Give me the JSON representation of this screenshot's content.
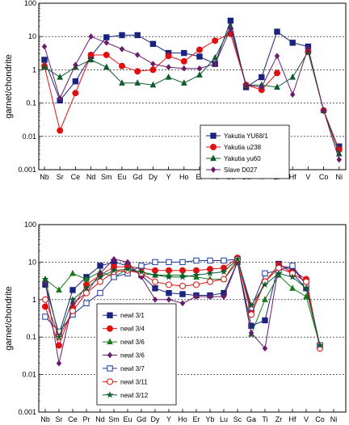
{
  "chart_data": [
    {
      "type": "line",
      "title": "",
      "ylabel": "garnet/chondrite",
      "xlabel": "",
      "y_scale": "log",
      "ylim": [
        0.001,
        100
      ],
      "y_ticks": [
        "0.001",
        "0.01",
        "0.1",
        "1",
        "10",
        "100"
      ],
      "categories": [
        "Nb",
        "Sr",
        "Ce",
        "Nd",
        "Sm",
        "Eu",
        "Gd",
        "Dy",
        "Y",
        "Ho",
        "Er",
        "Yb",
        "Sc",
        "Ga",
        "Ti",
        "Zr",
        "Hf",
        "V",
        "Co",
        "Ni"
      ],
      "grid": "horizontal dashed at decades",
      "legend_position": "bottom-right",
      "series": [
        {
          "name": "Yakutia YU68/1",
          "color": "#1a237e",
          "marker": "square-filled",
          "values": [
            2.0,
            0.12,
            0.45,
            2.6,
            9.5,
            11,
            11,
            6,
            3.2,
            3.2,
            2.5,
            1.5,
            30,
            0.3,
            0.6,
            14,
            6.5,
            5,
            null,
            0.005
          ]
        },
        {
          "name": "Yakutia u238",
          "color": "#e01010",
          "marker": "circle-filled",
          "values": [
            1.3,
            0.015,
            0.2,
            2.8,
            2.8,
            1.3,
            0.9,
            1.0,
            2.6,
            1.8,
            4.0,
            7.5,
            12,
            0.35,
            0.25,
            0.8,
            null,
            3.5,
            0.06,
            0.004
          ]
        },
        {
          "name": "Yakutia yu60",
          "color": "#0d5c2e",
          "marker": "triangle-filled",
          "values": [
            1.2,
            0.6,
            1.2,
            2.0,
            1.2,
            0.4,
            0.4,
            0.35,
            0.6,
            0.4,
            0.7,
            2.3,
            20,
            0.35,
            0.35,
            0.3,
            0.6,
            3.5,
            0.06,
            0.003
          ]
        },
        {
          "name": "Slave D027",
          "color": "#6a1b6a",
          "marker": "diamond-filled",
          "values": [
            5.0,
            0.14,
            1.4,
            10,
            6.5,
            4.2,
            2.8,
            1.5,
            1.2,
            1.1,
            1.1,
            1.5,
            17,
            0.35,
            0.3,
            2.6,
            0.18,
            4.5,
            0.06,
            0.002
          ]
        }
      ]
    },
    {
      "type": "line",
      "title": "",
      "ylabel": "garnet/chondrite",
      "xlabel": "",
      "y_scale": "log",
      "ylim": [
        0.001,
        100
      ],
      "y_ticks": [
        "0.001",
        "0.01",
        "0.1",
        "1",
        "10",
        "100"
      ],
      "categories": [
        "Nb",
        "Sr",
        "Ce",
        "Pr",
        "Nd",
        "Sm",
        "Eu",
        "Gd",
        "Dy",
        "Y",
        "Ho",
        "Er",
        "Yb",
        "Lu",
        "Sc",
        "Ga",
        "Ti",
        "Zr",
        "Hf",
        "V",
        "Co",
        "Ni"
      ],
      "grid": "horizontal dashed at decades",
      "legend_position": "bottom-left",
      "series": [
        {
          "name": "newl 3/1",
          "color": "#1a237e",
          "marker": "square-filled",
          "values": [
            2.5,
            0.12,
            1.8,
            4.0,
            8.0,
            10,
            8.0,
            4.5,
            2.0,
            1.5,
            1.4,
            1.3,
            1.3,
            1.5,
            10,
            0.2,
            0.28,
            9.0,
            5.0,
            2.0,
            0.06,
            null
          ]
        },
        {
          "name": "newl 3/4",
          "color": "#e01010",
          "marker": "circle-filled",
          "values": [
            0.65,
            0.06,
            0.6,
            2.5,
            4.5,
            7.5,
            7.5,
            7.0,
            6.0,
            6.0,
            6.0,
            6.0,
            6.5,
            7.0,
            13,
            0.5,
            3.0,
            8.5,
            6.0,
            3.5,
            0.05,
            null
          ]
        },
        {
          "name": "newl 3/6",
          "color": "#1a7a1a",
          "marker": "triangle-filled",
          "values": [
            3.5,
            1.8,
            5.0,
            3.5,
            5.5,
            4.0,
            6.5,
            5.0,
            4.5,
            4.5,
            4.5,
            4.0,
            3.5,
            3.5,
            10,
            0.12,
            1.0,
            4.5,
            2.0,
            1.2,
            0.06,
            null
          ]
        },
        {
          "name": "newl 3/6",
          "color": "#6a1b6a",
          "marker": "diamond-filled",
          "values": [
            3.0,
            0.02,
            0.8,
            1.5,
            5.0,
            12,
            10,
            4.0,
            1.0,
            1.0,
            0.8,
            1.2,
            1.2,
            1.2,
            10,
            0.13,
            0.05,
            8.0,
            7.0,
            2.5,
            0.06,
            null
          ]
        },
        {
          "name": "newl 3/7",
          "color": "#1a3a9e",
          "marker": "square-open",
          "values": [
            0.35,
            0.14,
            0.4,
            0.8,
            1.5,
            4.0,
            5.0,
            8.0,
            10,
            10,
            10,
            11,
            11,
            11,
            12,
            0.6,
            5.0,
            6.0,
            8.0,
            2.5,
            0.06,
            null
          ]
        },
        {
          "name": "newl 3/11",
          "color": "#e01010",
          "marker": "circle-open",
          "values": [
            1.0,
            0.1,
            0.5,
            1.5,
            3.0,
            5.5,
            6.0,
            5.0,
            3.0,
            2.5,
            2.3,
            2.5,
            3.0,
            3.5,
            12,
            0.4,
            3.0,
            7.0,
            5.0,
            3.0,
            0.05,
            null
          ]
        },
        {
          "name": "newl 3/12",
          "color": "#0d5c2e",
          "marker": "star-filled",
          "values": [
            3.5,
            0.1,
            1.0,
            2.0,
            4.0,
            6.0,
            6.5,
            5.5,
            4.5,
            4.0,
            4.0,
            4.5,
            5.0,
            5.5,
            12,
            0.7,
            2.5,
            5.0,
            4.0,
            2.0,
            0.06,
            null
          ]
        }
      ]
    }
  ]
}
